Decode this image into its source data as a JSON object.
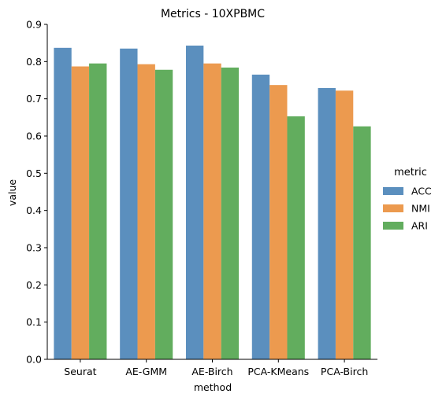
{
  "chart_data": {
    "type": "bar",
    "title": "Metrics - 10XPBMC",
    "xlabel": "method",
    "ylabel": "value",
    "categories": [
      "Seurat",
      "AE-GMM",
      "AE-Birch",
      "PCA-KMeans",
      "PCA-Birch"
    ],
    "series": [
      {
        "name": "ACC",
        "values": [
          0.837,
          0.835,
          0.843,
          0.765,
          0.729
        ],
        "color": "#5b8fbe"
      },
      {
        "name": "NMI",
        "values": [
          0.787,
          0.793,
          0.795,
          0.737,
          0.722
        ],
        "color": "#ec9a4f"
      },
      {
        "name": "ARI",
        "values": [
          0.795,
          0.778,
          0.784,
          0.653,
          0.626
        ],
        "color": "#62ad5e"
      }
    ],
    "ylim": [
      0,
      0.9
    ],
    "yticks": [
      "0.0",
      "0.1",
      "0.2",
      "0.3",
      "0.4",
      "0.5",
      "0.6",
      "0.7",
      "0.8",
      "0.9"
    ],
    "grid": false,
    "legend": {
      "title": "metric",
      "placement": "right"
    }
  }
}
